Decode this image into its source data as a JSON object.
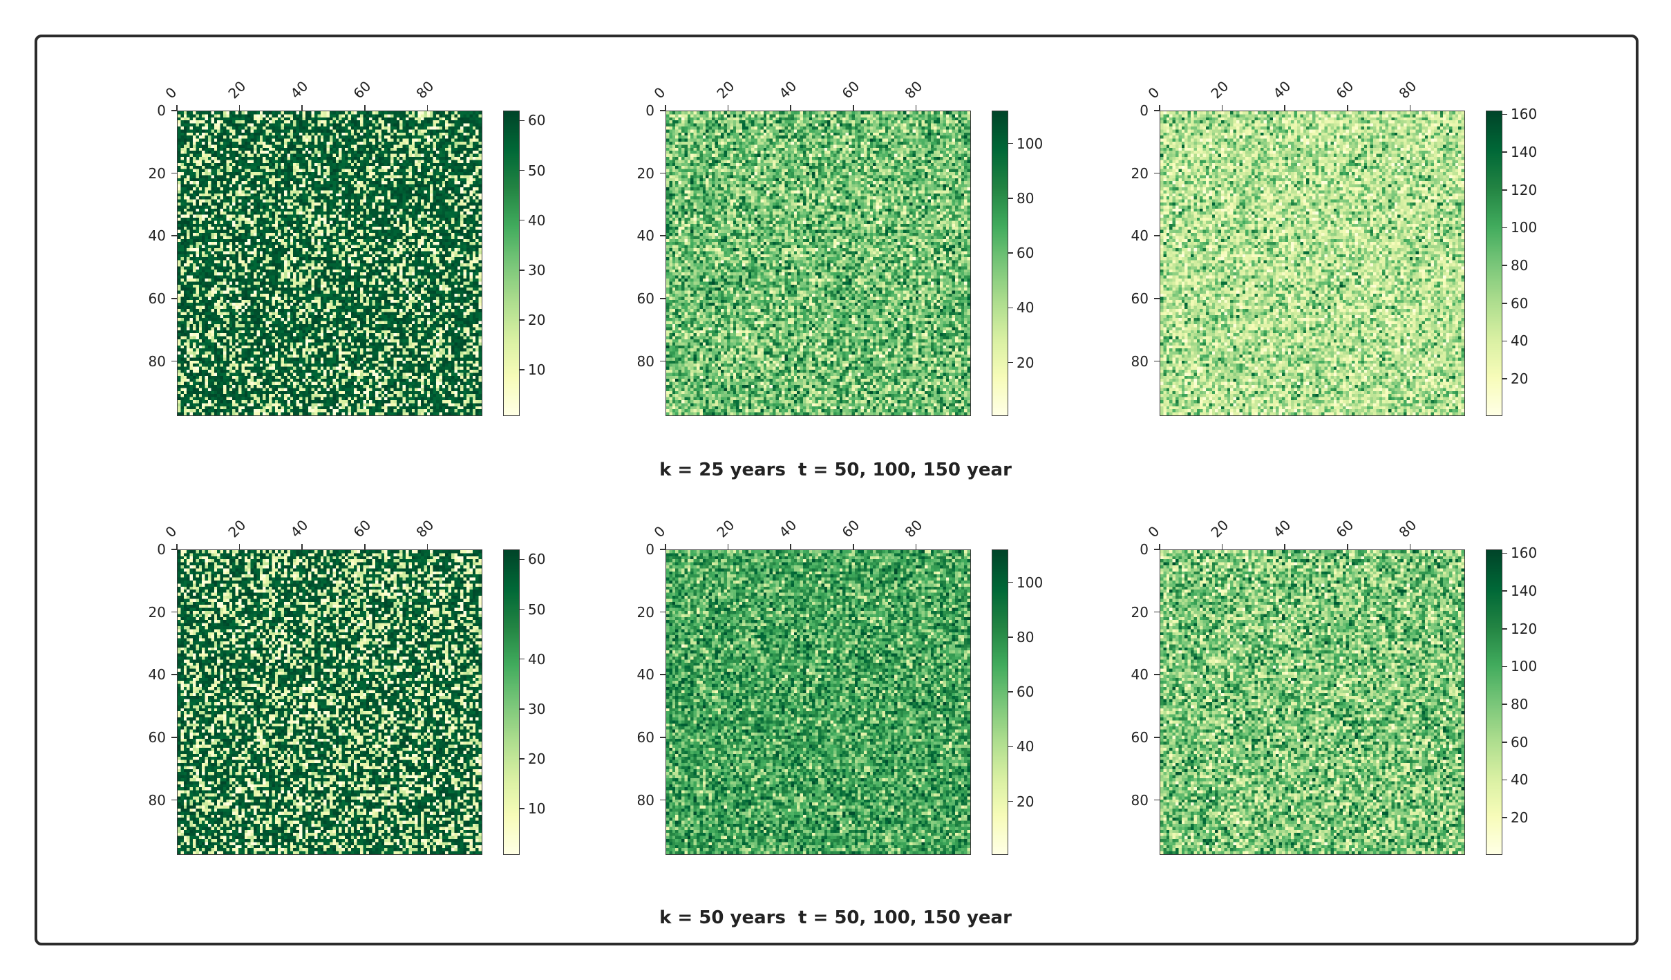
{
  "colormap": [
    "#ffffe5",
    "#f7fcb9",
    "#d9f0a3",
    "#addd8e",
    "#78c679",
    "#41ab5d",
    "#238443",
    "#006837",
    "#004529"
  ],
  "captions": [
    "k = 25 years  t = 50, 100, 150 year",
    "k = 50 years  t = 50, 100, 150 year"
  ],
  "chart_data": [
    {
      "type": "heatmap",
      "row": 1,
      "col": 1,
      "grid": [
        100,
        100
      ],
      "xticks": [
        "0",
        "20",
        "40",
        "60",
        "80"
      ],
      "yticks": [
        "0",
        "20",
        "40",
        "60",
        "80"
      ],
      "colorbar": {
        "min": 1,
        "max": 62,
        "ticks": [
          "10",
          "20",
          "30",
          "40",
          "50",
          "60"
        ]
      },
      "distribution": "mostly high values (dark green) with scattered low cells",
      "seed": 11
    },
    {
      "type": "heatmap",
      "row": 1,
      "col": 2,
      "grid": [
        100,
        100
      ],
      "xticks": [
        "0",
        "20",
        "40",
        "60",
        "80"
      ],
      "yticks": [
        "0",
        "20",
        "40",
        "60",
        "80"
      ],
      "colorbar": {
        "min": 1,
        "max": 112,
        "ticks": [
          "20",
          "40",
          "60",
          "80",
          "100"
        ]
      },
      "distribution": "mixed, leaning light-to-mid green",
      "seed": 23
    },
    {
      "type": "heatmap",
      "row": 1,
      "col": 3,
      "grid": [
        100,
        100
      ],
      "xticks": [
        "0",
        "20",
        "40",
        "60",
        "80"
      ],
      "yticks": [
        "0",
        "20",
        "40",
        "60",
        "80"
      ],
      "colorbar": {
        "min": 1,
        "max": 162,
        "ticks": [
          "20",
          "40",
          "60",
          "80",
          "100",
          "120",
          "140",
          "160"
        ]
      },
      "distribution": "mostly light values with scattered mid greens",
      "seed": 37
    },
    {
      "type": "heatmap",
      "row": 2,
      "col": 1,
      "grid": [
        100,
        100
      ],
      "xticks": [
        "0",
        "20",
        "40",
        "60",
        "80"
      ],
      "yticks": [
        "0",
        "20",
        "40",
        "60",
        "80"
      ],
      "colorbar": {
        "min": 1,
        "max": 62,
        "ticks": [
          "10",
          "20",
          "30",
          "40",
          "50",
          "60"
        ]
      },
      "distribution": "mostly high values (dark green) with scattered low cells",
      "seed": 41
    },
    {
      "type": "heatmap",
      "row": 2,
      "col": 2,
      "grid": [
        100,
        100
      ],
      "xticks": [
        "0",
        "20",
        "40",
        "60",
        "80"
      ],
      "yticks": [
        "0",
        "20",
        "40",
        "60",
        "80"
      ],
      "colorbar": {
        "min": 1,
        "max": 112,
        "ticks": [
          "20",
          "40",
          "60",
          "80",
          "100"
        ]
      },
      "distribution": "mixed, leaning mid-to-dark green",
      "seed": 53
    },
    {
      "type": "heatmap",
      "row": 2,
      "col": 3,
      "grid": [
        100,
        100
      ],
      "xticks": [
        "0",
        "20",
        "40",
        "60",
        "80"
      ],
      "yticks": [
        "0",
        "20",
        "40",
        "60",
        "80"
      ],
      "colorbar": {
        "min": 1,
        "max": 162,
        "ticks": [
          "20",
          "40",
          "60",
          "80",
          "100",
          "120",
          "140",
          "160"
        ]
      },
      "distribution": "mixed light and mid green",
      "seed": 67
    }
  ]
}
